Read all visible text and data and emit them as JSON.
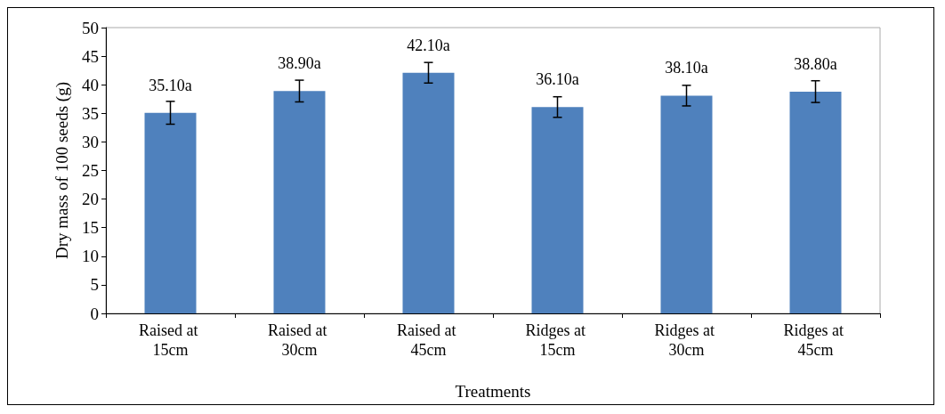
{
  "chart_data": {
    "type": "bar",
    "xlabel": "Treatments",
    "ylabel": "Dry mass of 100 seeds (g)",
    "categories": [
      "Raised at 15cm",
      "Raised at 30cm",
      "Raised at 45cm",
      "Ridges at 15cm",
      "Ridges at 30cm",
      "Ridges at 45cm"
    ],
    "values": [
      35.1,
      38.9,
      42.1,
      36.1,
      38.1,
      38.8
    ],
    "value_labels": [
      "35.10a",
      "38.90a",
      "42.10a",
      "36.10a",
      "38.10a",
      "38.80a"
    ],
    "errors": [
      2.0,
      1.9,
      1.8,
      1.8,
      1.8,
      1.9
    ],
    "color": "#4f81bd",
    "ylim": [
      0,
      50
    ],
    "yticks": [
      0,
      5,
      10,
      15,
      20,
      25,
      30,
      35,
      40,
      45,
      50
    ],
    "grid": false
  }
}
